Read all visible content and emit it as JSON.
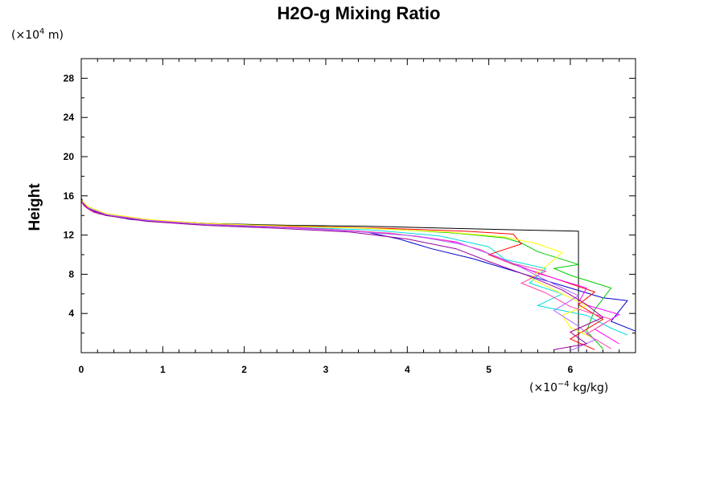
{
  "chart_data": {
    "type": "line",
    "title": "H2O-g Mixing Ratio",
    "ylabel": "Height",
    "x_unit_prefix": "(×10",
    "x_unit_exp": "−4",
    "x_unit_suffix": " kg/kg)",
    "y_unit_prefix": "(×10",
    "y_unit_exp": "4",
    "y_unit_suffix": " m)",
    "xlim": [
      0,
      6.8
    ],
    "ylim": [
      0,
      30
    ],
    "x_ticks": [
      0,
      1,
      2,
      3,
      4,
      5,
      6
    ],
    "x_tick_labels": [
      "0",
      "1",
      "2",
      "3",
      "4",
      "5",
      "6"
    ],
    "y_ticks": [
      4,
      8,
      12,
      16,
      20,
      24,
      28
    ],
    "y_tick_labels": [
      "4",
      "8",
      "12",
      "16",
      "20",
      "24",
      "28"
    ],
    "grid": false,
    "series": [
      {
        "color": "#000000",
        "points": [
          [
            6.1,
            0.1
          ],
          [
            6.1,
            12.4
          ],
          [
            5.5,
            12.5
          ],
          [
            4.5,
            12.7
          ],
          [
            3.5,
            12.9
          ],
          [
            2.5,
            13.0
          ],
          [
            1.5,
            13.2
          ],
          [
            0.8,
            13.5
          ],
          [
            0.3,
            14.0
          ],
          [
            0.1,
            14.6
          ],
          [
            0.03,
            15.2
          ],
          [
            0,
            15.8
          ],
          [
            0,
            30
          ]
        ]
      },
      {
        "color": "#0000cc",
        "points": [
          [
            6.8,
            2.2
          ],
          [
            6.5,
            3.2
          ],
          [
            6.7,
            5.3
          ],
          [
            6.4,
            5.6
          ],
          [
            6.0,
            6.6
          ],
          [
            5.6,
            7.6
          ],
          [
            5.2,
            8.6
          ],
          [
            4.8,
            9.6
          ],
          [
            4.3,
            10.6
          ],
          [
            3.9,
            11.6
          ],
          [
            3.5,
            12.3
          ],
          [
            2.8,
            12.7
          ],
          [
            2.0,
            12.9
          ],
          [
            1.2,
            13.2
          ],
          [
            0.6,
            13.6
          ],
          [
            0.2,
            14.2
          ],
          [
            0.05,
            14.9
          ],
          [
            0,
            15.6
          ],
          [
            0,
            30
          ]
        ]
      },
      {
        "color": "#00cc00",
        "points": [
          [
            6.4,
            0.4
          ],
          [
            6.2,
            2.2
          ],
          [
            6.3,
            4.4
          ],
          [
            6.5,
            6.6
          ],
          [
            6.0,
            7.9
          ],
          [
            5.8,
            8.6
          ],
          [
            6.1,
            9.0
          ],
          [
            5.6,
            10.3
          ],
          [
            5.4,
            11.2
          ],
          [
            5.2,
            11.7
          ],
          [
            4.6,
            12.2
          ],
          [
            3.8,
            12.6
          ],
          [
            2.8,
            12.9
          ],
          [
            1.8,
            13.1
          ],
          [
            1.0,
            13.4
          ],
          [
            0.4,
            13.9
          ],
          [
            0.1,
            14.6
          ],
          [
            0,
            15.5
          ],
          [
            0,
            30
          ]
        ]
      },
      {
        "color": "#00dddd",
        "points": [
          [
            6.7,
            1.8
          ],
          [
            6.5,
            2.5
          ],
          [
            6.2,
            3.8
          ],
          [
            5.6,
            4.8
          ],
          [
            5.9,
            6.0
          ],
          [
            5.5,
            7.1
          ],
          [
            5.7,
            8.6
          ],
          [
            5.2,
            9.5
          ],
          [
            5.0,
            10.8
          ],
          [
            4.4,
            11.9
          ],
          [
            3.6,
            12.5
          ],
          [
            2.6,
            12.8
          ],
          [
            1.6,
            13.1
          ],
          [
            0.8,
            13.5
          ],
          [
            0.3,
            14.1
          ],
          [
            0.08,
            14.8
          ],
          [
            0,
            15.5
          ],
          [
            0,
            30
          ]
        ]
      },
      {
        "color": "#ff0000",
        "points": [
          [
            6.3,
            0.3
          ],
          [
            6.0,
            1.4
          ],
          [
            6.4,
            3.4
          ],
          [
            6.1,
            4.9
          ],
          [
            6.3,
            6.2
          ],
          [
            5.8,
            7.6
          ],
          [
            5.3,
            9.0
          ],
          [
            5.0,
            10.0
          ],
          [
            5.4,
            11.1
          ],
          [
            5.3,
            12.1
          ],
          [
            4.7,
            12.4
          ],
          [
            3.7,
            12.7
          ],
          [
            2.7,
            12.9
          ],
          [
            1.7,
            13.1
          ],
          [
            0.9,
            13.5
          ],
          [
            0.35,
            14.0
          ],
          [
            0.1,
            14.7
          ],
          [
            0,
            15.5
          ],
          [
            0,
            30
          ]
        ]
      },
      {
        "color": "#ff00ff",
        "points": [
          [
            6.6,
            0.9
          ],
          [
            6.3,
            2.4
          ],
          [
            6.6,
            3.9
          ],
          [
            6.1,
            5.1
          ],
          [
            6.2,
            6.6
          ],
          [
            5.6,
            8.1
          ],
          [
            5.3,
            9.1
          ],
          [
            5.0,
            10.1
          ],
          [
            4.6,
            11.3
          ],
          [
            4.1,
            11.9
          ],
          [
            3.4,
            12.4
          ],
          [
            2.6,
            12.8
          ],
          [
            1.8,
            13.1
          ],
          [
            1.0,
            13.4
          ],
          [
            0.4,
            13.9
          ],
          [
            0.1,
            14.6
          ],
          [
            0,
            15.4
          ],
          [
            0,
            30
          ]
        ]
      },
      {
        "color": "#ffff00",
        "points": [
          [
            6.3,
            1.4
          ],
          [
            6.0,
            2.6
          ],
          [
            5.9,
            3.8
          ],
          [
            6.2,
            4.8
          ],
          [
            5.8,
            6.4
          ],
          [
            5.5,
            7.6
          ],
          [
            5.7,
            8.8
          ],
          [
            5.9,
            10.2
          ],
          [
            5.6,
            11.1
          ],
          [
            5.2,
            11.8
          ],
          [
            4.5,
            12.3
          ],
          [
            3.5,
            12.7
          ],
          [
            2.5,
            12.9
          ],
          [
            1.5,
            13.2
          ],
          [
            0.8,
            13.6
          ],
          [
            0.3,
            14.2
          ],
          [
            0.08,
            14.9
          ],
          [
            0,
            15.6
          ],
          [
            0,
            30
          ]
        ]
      },
      {
        "color": "#ff44aa",
        "points": [
          [
            6.5,
            0.4
          ],
          [
            6.2,
            1.9
          ],
          [
            6.5,
            3.4
          ],
          [
            6.0,
            4.7
          ],
          [
            5.7,
            6.1
          ],
          [
            5.4,
            7.1
          ],
          [
            5.7,
            8.3
          ],
          [
            5.2,
            9.3
          ],
          [
            4.9,
            10.5
          ],
          [
            4.5,
            11.4
          ],
          [
            3.8,
            12.2
          ],
          [
            3.0,
            12.6
          ],
          [
            2.1,
            12.9
          ],
          [
            1.2,
            13.2
          ],
          [
            0.55,
            13.7
          ],
          [
            0.15,
            14.3
          ],
          [
            0.03,
            15.0
          ],
          [
            0,
            15.6
          ],
          [
            0,
            30
          ]
        ]
      },
      {
        "color": "#aa66ff",
        "points": [
          [
            6.0,
            0.2
          ],
          [
            6.3,
            1.3
          ],
          [
            6.1,
            2.7
          ],
          [
            5.8,
            4.3
          ],
          [
            6.1,
            5.8
          ],
          [
            5.7,
            7.4
          ],
          [
            5.4,
            8.7
          ],
          [
            5.1,
            9.8
          ],
          [
            4.7,
            11.0
          ],
          [
            4.1,
            11.9
          ],
          [
            3.3,
            12.4
          ],
          [
            2.4,
            12.8
          ],
          [
            1.5,
            13.1
          ],
          [
            0.8,
            13.5
          ],
          [
            0.3,
            14.1
          ],
          [
            0.07,
            14.8
          ],
          [
            0,
            15.5
          ],
          [
            0,
            30
          ]
        ]
      },
      {
        "color": "#990099",
        "points": [
          [
            5.8,
            0.3
          ],
          [
            6.2,
            0.9
          ],
          [
            6.0,
            2.1
          ],
          [
            6.4,
            3.6
          ],
          [
            6.2,
            4.9
          ],
          [
            5.9,
            6.4
          ],
          [
            5.5,
            7.8
          ],
          [
            5.0,
            9.3
          ],
          [
            4.6,
            10.6
          ],
          [
            4.0,
            11.6
          ],
          [
            3.3,
            12.3
          ],
          [
            2.4,
            12.7
          ],
          [
            1.5,
            13.0
          ],
          [
            0.8,
            13.4
          ],
          [
            0.3,
            14.0
          ],
          [
            0.08,
            14.7
          ],
          [
            0,
            15.4
          ],
          [
            0,
            30
          ]
        ]
      }
    ]
  }
}
